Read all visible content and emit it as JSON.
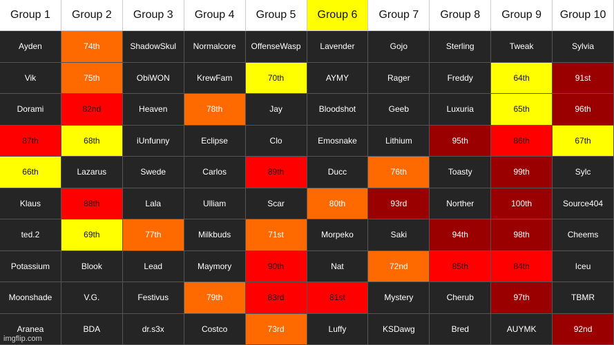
{
  "colors": {
    "dark": "#252525",
    "orange": "#ff6a00",
    "yellow": "#ffff00",
    "red": "#ff0000",
    "maroon": "#9a0000",
    "header": "#ffffff",
    "header_highlight": "#ffff00"
  },
  "headers": [
    {
      "label": "Group 1",
      "color": "header"
    },
    {
      "label": "Group 2",
      "color": "header"
    },
    {
      "label": "Group 3",
      "color": "header"
    },
    {
      "label": "Group 4",
      "color": "header"
    },
    {
      "label": "Group 5",
      "color": "header"
    },
    {
      "label": "Group 6",
      "color": "header-yellow"
    },
    {
      "label": "Group 7",
      "color": "header"
    },
    {
      "label": "Group 8",
      "color": "header"
    },
    {
      "label": "Group 9",
      "color": "header"
    },
    {
      "label": "Group 10",
      "color": "header"
    }
  ],
  "rows": [
    [
      {
        "text": "Ayden",
        "color": "dark"
      },
      {
        "text": "74th",
        "color": "orange"
      },
      {
        "text": "ShadowSkul",
        "color": "dark"
      },
      {
        "text": "Normalcore",
        "color": "dark"
      },
      {
        "text": "OffenseWasp",
        "color": "dark"
      },
      {
        "text": "Lavender",
        "color": "dark"
      },
      {
        "text": "Gojo",
        "color": "dark"
      },
      {
        "text": "Sterling",
        "color": "dark"
      },
      {
        "text": "Tweak",
        "color": "dark"
      },
      {
        "text": "Sylvia",
        "color": "dark"
      }
    ],
    [
      {
        "text": "Vik",
        "color": "dark"
      },
      {
        "text": "75th",
        "color": "orange"
      },
      {
        "text": "ObiWON",
        "color": "dark"
      },
      {
        "text": "KrewFam",
        "color": "dark"
      },
      {
        "text": "70th",
        "color": "yellow"
      },
      {
        "text": "AYMY",
        "color": "dark"
      },
      {
        "text": "Rager",
        "color": "dark"
      },
      {
        "text": "Freddy",
        "color": "dark"
      },
      {
        "text": "64th",
        "color": "yellow"
      },
      {
        "text": "91st",
        "color": "maroon"
      }
    ],
    [
      {
        "text": "Dorami",
        "color": "dark"
      },
      {
        "text": "82nd",
        "color": "red"
      },
      {
        "text": "Heaven",
        "color": "dark"
      },
      {
        "text": "78th",
        "color": "orange"
      },
      {
        "text": "Jay",
        "color": "dark"
      },
      {
        "text": "Bloodshot",
        "color": "dark"
      },
      {
        "text": "Geeb",
        "color": "dark"
      },
      {
        "text": "Luxuria",
        "color": "dark"
      },
      {
        "text": "65th",
        "color": "yellow"
      },
      {
        "text": "96th",
        "color": "maroon"
      }
    ],
    [
      {
        "text": "87th",
        "color": "red"
      },
      {
        "text": "68th",
        "color": "yellow"
      },
      {
        "text": "iUnfunny",
        "color": "dark"
      },
      {
        "text": "Eclipse",
        "color": "dark"
      },
      {
        "text": "Clo",
        "color": "dark"
      },
      {
        "text": "Emosnake",
        "color": "dark"
      },
      {
        "text": "Lithium",
        "color": "dark"
      },
      {
        "text": "95th",
        "color": "maroon"
      },
      {
        "text": "86th",
        "color": "red"
      },
      {
        "text": "67th",
        "color": "yellow"
      }
    ],
    [
      {
        "text": "66th",
        "color": "yellow"
      },
      {
        "text": "Lazarus",
        "color": "dark"
      },
      {
        "text": "Swede",
        "color": "dark"
      },
      {
        "text": "Carlos",
        "color": "dark"
      },
      {
        "text": "89th",
        "color": "red"
      },
      {
        "text": "Ducc",
        "color": "dark"
      },
      {
        "text": "76th",
        "color": "orange"
      },
      {
        "text": "Toasty",
        "color": "dark"
      },
      {
        "text": "99th",
        "color": "maroon"
      },
      {
        "text": "Sylc",
        "color": "dark"
      }
    ],
    [
      {
        "text": "Klaus",
        "color": "dark"
      },
      {
        "text": "88th",
        "color": "red"
      },
      {
        "text": "Lala",
        "color": "dark"
      },
      {
        "text": "Ulliam",
        "color": "dark"
      },
      {
        "text": "Scar",
        "color": "dark"
      },
      {
        "text": "80th",
        "color": "orange"
      },
      {
        "text": "93rd",
        "color": "maroon"
      },
      {
        "text": "Norther",
        "color": "dark"
      },
      {
        "text": "100th",
        "color": "maroon"
      },
      {
        "text": "Source404",
        "color": "dark"
      }
    ],
    [
      {
        "text": "ted.2",
        "color": "dark"
      },
      {
        "text": "69th",
        "color": "yellow"
      },
      {
        "text": "77th",
        "color": "orange"
      },
      {
        "text": "Milkbuds",
        "color": "dark"
      },
      {
        "text": "71st",
        "color": "orange"
      },
      {
        "text": "Morpeko",
        "color": "dark"
      },
      {
        "text": "Saki",
        "color": "dark"
      },
      {
        "text": "94th",
        "color": "maroon"
      },
      {
        "text": "98th",
        "color": "maroon"
      },
      {
        "text": "Cheems",
        "color": "dark"
      }
    ],
    [
      {
        "text": "Potassium",
        "color": "dark"
      },
      {
        "text": "Blook",
        "color": "dark"
      },
      {
        "text": "Lead",
        "color": "dark"
      },
      {
        "text": "Maymory",
        "color": "dark"
      },
      {
        "text": "90th",
        "color": "red"
      },
      {
        "text": "Nat",
        "color": "dark"
      },
      {
        "text": "72nd",
        "color": "orange"
      },
      {
        "text": "85th",
        "color": "red"
      },
      {
        "text": "84th",
        "color": "red"
      },
      {
        "text": "Iceu",
        "color": "dark"
      }
    ],
    [
      {
        "text": "Moonshade",
        "color": "dark"
      },
      {
        "text": "V.G.",
        "color": "dark"
      },
      {
        "text": "Festivus",
        "color": "dark"
      },
      {
        "text": "79th",
        "color": "orange"
      },
      {
        "text": "83rd",
        "color": "red"
      },
      {
        "text": "81st",
        "color": "red"
      },
      {
        "text": "Mystery",
        "color": "dark"
      },
      {
        "text": "Cherub",
        "color": "dark"
      },
      {
        "text": "97th",
        "color": "maroon"
      },
      {
        "text": "TBMR",
        "color": "dark"
      }
    ],
    [
      {
        "text": "Aranea",
        "color": "dark"
      },
      {
        "text": "BDA",
        "color": "dark"
      },
      {
        "text": "dr.s3x",
        "color": "dark"
      },
      {
        "text": "Costco",
        "color": "dark"
      },
      {
        "text": "73rd",
        "color": "orange"
      },
      {
        "text": "Luffy",
        "color": "dark"
      },
      {
        "text": "KSDawg",
        "color": "dark"
      },
      {
        "text": "Bred",
        "color": "dark"
      },
      {
        "text": "AUYMK",
        "color": "dark"
      },
      {
        "text": "92nd",
        "color": "maroon"
      }
    ]
  ],
  "watermark": "imgflip.com"
}
